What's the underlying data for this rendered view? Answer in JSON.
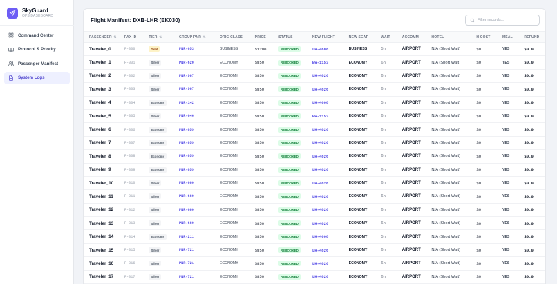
{
  "brand": {
    "name": "SkyGuard",
    "subtitle": "OPS DASHBOARD"
  },
  "nav": [
    {
      "label": "Command Center",
      "icon": "grid-icon",
      "active": false
    },
    {
      "label": "Protocol & Priority",
      "icon": "book-icon",
      "active": false
    },
    {
      "label": "Passenger Manifest",
      "icon": "users-icon",
      "active": false
    },
    {
      "label": "System Logs",
      "icon": "document-icon",
      "active": true
    }
  ],
  "panel": {
    "title": "Flight Manifest: DXB-LHR (EK030)"
  },
  "search": {
    "placeholder": "Filter records..."
  },
  "columns": [
    "PASSENGER",
    "PAX ID",
    "TIER",
    "GROUP PNR",
    "ORIG CLASS",
    "PRICE",
    "STATUS",
    "NEW FLIGHT",
    "NEW SEAT",
    "WAIT",
    "ACCOMM",
    "HOTEL",
    "H COST",
    "MEAL",
    "REFUND"
  ],
  "sortable_columns": [
    "PASSENGER",
    "TIER",
    "GROUP PNR"
  ],
  "colors": {
    "accent": "#6d5df5",
    "link": "#4f46e5",
    "status_bg": "#dcfce7",
    "status_fg": "#15803d",
    "gold_bg": "#fef3c7"
  },
  "rows": [
    {
      "name": "Traveler_0",
      "pax_id": "P-000",
      "tier": "Gold",
      "pnr": "PNR-653",
      "orig_class": "BUSINESS",
      "price": "$3200",
      "status": "REBOOKED",
      "new_flight": "LH-4608",
      "new_seat": "BUSINESS",
      "wait": "5h",
      "accomm": "AIRPORT",
      "hotel": "N/A (Short Wait)",
      "h_cost": "$0",
      "meal": "YES",
      "refund": "$0.0"
    },
    {
      "name": "Traveler_1",
      "pax_id": "P-001",
      "tier": "Silver",
      "pnr": "PNR-620",
      "orig_class": "ECONOMY",
      "price": "$850",
      "status": "REBOOKED",
      "new_flight": "EW-1153",
      "new_seat": "ECONOMY",
      "wait": "6h",
      "accomm": "AIRPORT",
      "hotel": "N/A (Short Wait)",
      "h_cost": "$0",
      "meal": "YES",
      "refund": "$0.0"
    },
    {
      "name": "Traveler_2",
      "pax_id": "P-002",
      "tier": "Silver",
      "pnr": "PNR-987",
      "orig_class": "ECONOMY",
      "price": "$850",
      "status": "REBOOKED",
      "new_flight": "LH-4826",
      "new_seat": "ECONOMY",
      "wait": "6h",
      "accomm": "AIRPORT",
      "hotel": "N/A (Short Wait)",
      "h_cost": "$0",
      "meal": "YES",
      "refund": "$0.0"
    },
    {
      "name": "Traveler_3",
      "pax_id": "P-003",
      "tier": "Silver",
      "pnr": "PNR-987",
      "orig_class": "ECONOMY",
      "price": "$850",
      "status": "REBOOKED",
      "new_flight": "LH-4826",
      "new_seat": "ECONOMY",
      "wait": "6h",
      "accomm": "AIRPORT",
      "hotel": "N/A (Short Wait)",
      "h_cost": "$0",
      "meal": "YES",
      "refund": "$0.0"
    },
    {
      "name": "Traveler_4",
      "pax_id": "P-004",
      "tier": "Economy",
      "pnr": "PNR-142",
      "orig_class": "ECONOMY",
      "price": "$850",
      "status": "REBOOKED",
      "new_flight": "LH-4608",
      "new_seat": "ECONOMY",
      "wait": "5h",
      "accomm": "AIRPORT",
      "hotel": "N/A (Short Wait)",
      "h_cost": "$0",
      "meal": "YES",
      "refund": "$0.0"
    },
    {
      "name": "Traveler_5",
      "pax_id": "P-005",
      "tier": "Silver",
      "pnr": "PNR-646",
      "orig_class": "ECONOMY",
      "price": "$850",
      "status": "REBOOKED",
      "new_flight": "EW-1153",
      "new_seat": "ECONOMY",
      "wait": "6h",
      "accomm": "AIRPORT",
      "hotel": "N/A (Short Wait)",
      "h_cost": "$0",
      "meal": "YES",
      "refund": "$0.0"
    },
    {
      "name": "Traveler_6",
      "pax_id": "P-006",
      "tier": "Economy",
      "pnr": "PNR-859",
      "orig_class": "ECONOMY",
      "price": "$850",
      "status": "REBOOKED",
      "new_flight": "LH-4826",
      "new_seat": "ECONOMY",
      "wait": "6h",
      "accomm": "AIRPORT",
      "hotel": "N/A (Short Wait)",
      "h_cost": "$0",
      "meal": "YES",
      "refund": "$0.0"
    },
    {
      "name": "Traveler_7",
      "pax_id": "P-007",
      "tier": "Economy",
      "pnr": "PNR-859",
      "orig_class": "ECONOMY",
      "price": "$850",
      "status": "REBOOKED",
      "new_flight": "LH-4826",
      "new_seat": "ECONOMY",
      "wait": "6h",
      "accomm": "AIRPORT",
      "hotel": "N/A (Short Wait)",
      "h_cost": "$0",
      "meal": "YES",
      "refund": "$0.0"
    },
    {
      "name": "Traveler_8",
      "pax_id": "P-008",
      "tier": "Economy",
      "pnr": "PNR-859",
      "orig_class": "ECONOMY",
      "price": "$850",
      "status": "REBOOKED",
      "new_flight": "LH-4826",
      "new_seat": "ECONOMY",
      "wait": "6h",
      "accomm": "AIRPORT",
      "hotel": "N/A (Short Wait)",
      "h_cost": "$0",
      "meal": "YES",
      "refund": "$0.0"
    },
    {
      "name": "Traveler_9",
      "pax_id": "P-009",
      "tier": "Economy",
      "pnr": "PNR-859",
      "orig_class": "ECONOMY",
      "price": "$850",
      "status": "REBOOKED",
      "new_flight": "LH-4826",
      "new_seat": "ECONOMY",
      "wait": "6h",
      "accomm": "AIRPORT",
      "hotel": "N/A (Short Wait)",
      "h_cost": "$0",
      "meal": "YES",
      "refund": "$0.0"
    },
    {
      "name": "Traveler_10",
      "pax_id": "P-010",
      "tier": "Silver",
      "pnr": "PNR-680",
      "orig_class": "ECONOMY",
      "price": "$850",
      "status": "REBOOKED",
      "new_flight": "LH-4826",
      "new_seat": "ECONOMY",
      "wait": "6h",
      "accomm": "AIRPORT",
      "hotel": "N/A (Short Wait)",
      "h_cost": "$0",
      "meal": "YES",
      "refund": "$0.0"
    },
    {
      "name": "Traveler_11",
      "pax_id": "P-011",
      "tier": "Silver",
      "pnr": "PNR-680",
      "orig_class": "ECONOMY",
      "price": "$850",
      "status": "REBOOKED",
      "new_flight": "LH-4826",
      "new_seat": "ECONOMY",
      "wait": "6h",
      "accomm": "AIRPORT",
      "hotel": "N/A (Short Wait)",
      "h_cost": "$0",
      "meal": "YES",
      "refund": "$0.0"
    },
    {
      "name": "Traveler_12",
      "pax_id": "P-012",
      "tier": "Silver",
      "pnr": "PNR-680",
      "orig_class": "ECONOMY",
      "price": "$850",
      "status": "REBOOKED",
      "new_flight": "LH-4826",
      "new_seat": "ECONOMY",
      "wait": "6h",
      "accomm": "AIRPORT",
      "hotel": "N/A (Short Wait)",
      "h_cost": "$0",
      "meal": "YES",
      "refund": "$0.0"
    },
    {
      "name": "Traveler_13",
      "pax_id": "P-013",
      "tier": "Silver",
      "pnr": "PNR-680",
      "orig_class": "ECONOMY",
      "price": "$850",
      "status": "REBOOKED",
      "new_flight": "LH-4826",
      "new_seat": "ECONOMY",
      "wait": "6h",
      "accomm": "AIRPORT",
      "hotel": "N/A (Short Wait)",
      "h_cost": "$0",
      "meal": "YES",
      "refund": "$0.0"
    },
    {
      "name": "Traveler_14",
      "pax_id": "P-014",
      "tier": "Economy",
      "pnr": "PNR-211",
      "orig_class": "ECONOMY",
      "price": "$850",
      "status": "REBOOKED",
      "new_flight": "LH-4608",
      "new_seat": "ECONOMY",
      "wait": "5h",
      "accomm": "AIRPORT",
      "hotel": "N/A (Short Wait)",
      "h_cost": "$0",
      "meal": "YES",
      "refund": "$0.0"
    },
    {
      "name": "Traveler_15",
      "pax_id": "P-015",
      "tier": "Silver",
      "pnr": "PNR-721",
      "orig_class": "ECONOMY",
      "price": "$850",
      "status": "REBOOKED",
      "new_flight": "LH-4826",
      "new_seat": "ECONOMY",
      "wait": "6h",
      "accomm": "AIRPORT",
      "hotel": "N/A (Short Wait)",
      "h_cost": "$0",
      "meal": "YES",
      "refund": "$0.0"
    },
    {
      "name": "Traveler_16",
      "pax_id": "P-016",
      "tier": "Silver",
      "pnr": "PNR-721",
      "orig_class": "ECONOMY",
      "price": "$850",
      "status": "REBOOKED",
      "new_flight": "LH-4826",
      "new_seat": "ECONOMY",
      "wait": "6h",
      "accomm": "AIRPORT",
      "hotel": "N/A (Short Wait)",
      "h_cost": "$0",
      "meal": "YES",
      "refund": "$0.0"
    },
    {
      "name": "Traveler_17",
      "pax_id": "P-017",
      "tier": "Silver",
      "pnr": "PNR-721",
      "orig_class": "ECONOMY",
      "price": "$850",
      "status": "REBOOKED",
      "new_flight": "LH-4826",
      "new_seat": "ECONOMY",
      "wait": "6h",
      "accomm": "AIRPORT",
      "hotel": "N/A (Short Wait)",
      "h_cost": "$0",
      "meal": "YES",
      "refund": "$0.0"
    }
  ]
}
